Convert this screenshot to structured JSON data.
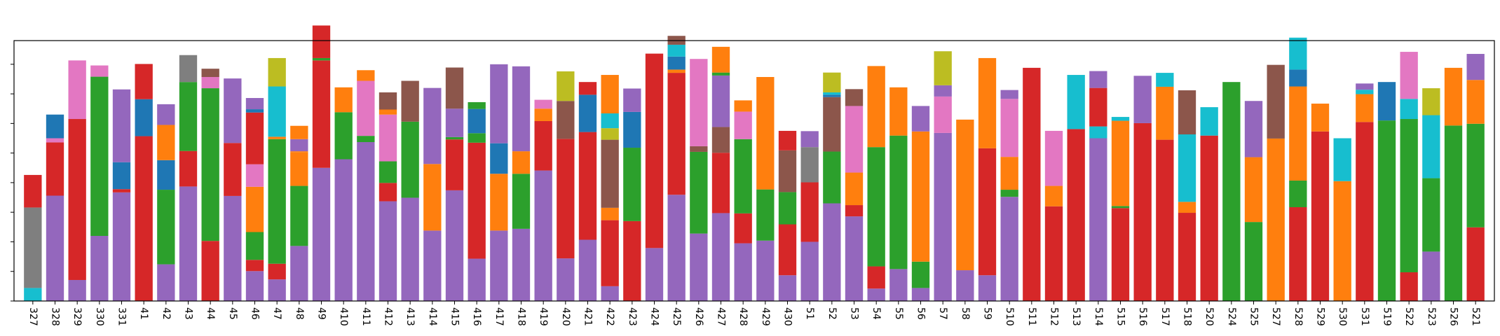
{
  "chart_data": {
    "type": "bar",
    "stacked": true,
    "title": "",
    "xlabel": "",
    "ylabel": "",
    "ylim": [
      0,
      88
    ],
    "ytick_values": [
      0,
      10,
      20,
      30,
      40,
      50,
      60,
      70,
      80
    ],
    "ytick_labels_visible": false,
    "grid": false,
    "legend": "none",
    "categories": [
      "327",
      "328",
      "329",
      "330",
      "331",
      "41",
      "42",
      "43",
      "44",
      "45",
      "46",
      "47",
      "48",
      "49",
      "410",
      "411",
      "412",
      "413",
      "414",
      "415",
      "416",
      "417",
      "418",
      "419",
      "420",
      "421",
      "422",
      "423",
      "424",
      "425",
      "426",
      "427",
      "428",
      "429",
      "430",
      "51",
      "52",
      "53",
      "54",
      "55",
      "56",
      "57",
      "58",
      "59",
      "510",
      "511",
      "512",
      "513",
      "514",
      "515",
      "516",
      "517",
      "518",
      "520",
      "524",
      "525",
      "527",
      "528",
      "529",
      "530",
      "531",
      "519",
      "522",
      "523",
      "526",
      "521"
    ],
    "colors": {
      "purple": "#9467bd",
      "red": "#d62728",
      "green": "#2ca02c",
      "orange": "#ff7f0e",
      "pink": "#e377c2",
      "blue": "#1f77b4",
      "gray": "#7f7f7f",
      "brown": "#8c564b",
      "olive": "#bcbd22",
      "cyan": "#17becf"
    },
    "stacks": [
      [
        [
          "cyan",
          4.4
        ],
        [
          "gray",
          27.2
        ],
        [
          "red",
          11.0
        ]
      ],
      [
        [
          "purple",
          35.6
        ],
        [
          "red",
          18.0
        ],
        [
          "pink",
          1.4
        ],
        [
          "blue",
          8.0
        ]
      ],
      [
        [
          "purple",
          7.1
        ],
        [
          "red",
          54.4
        ],
        [
          "pink",
          19.8
        ]
      ],
      [
        [
          "purple",
          22.0
        ],
        [
          "green",
          53.8
        ],
        [
          "pink",
          3.8
        ]
      ],
      [
        [
          "purple",
          36.7
        ],
        [
          "red",
          1.1
        ],
        [
          "blue",
          9.1
        ],
        [
          "purple",
          24.6
        ]
      ],
      [
        [
          "red",
          55.7
        ],
        [
          "blue",
          12.5
        ],
        [
          "red",
          11.9
        ]
      ],
      [
        [
          "purple",
          12.4
        ],
        [
          "green",
          25.2
        ],
        [
          "blue",
          10.0
        ],
        [
          "orange",
          11.9
        ],
        [
          "purple",
          7.0
        ]
      ],
      [
        [
          "purple",
          38.7
        ],
        [
          "red",
          12.0
        ],
        [
          "green",
          23.3
        ],
        [
          "gray",
          9.1
        ]
      ],
      [
        [
          "red",
          20.3
        ],
        [
          "green",
          51.6
        ],
        [
          "pink",
          3.8
        ],
        [
          "brown",
          2.8
        ]
      ],
      [
        [
          "purple",
          35.5
        ],
        [
          "red",
          17.9
        ],
        [
          "purple",
          21.8
        ]
      ],
      [
        [
          "purple",
          10.1
        ],
        [
          "red",
          3.8
        ],
        [
          "green",
          9.4
        ],
        [
          "orange",
          15.3
        ],
        [
          "pink",
          7.6
        ],
        [
          "red",
          17.5
        ],
        [
          "blue",
          1.1
        ],
        [
          "purple",
          3.8
        ]
      ],
      [
        [
          "purple",
          7.3
        ],
        [
          "red",
          5.3
        ],
        [
          "green",
          42.1
        ],
        [
          "orange",
          0.8
        ],
        [
          "cyan",
          17.0
        ],
        [
          "olive",
          9.6
        ]
      ],
      [
        [
          "purple",
          18.6
        ],
        [
          "green",
          20.3
        ],
        [
          "orange",
          11.3
        ],
        [
          "orange",
          0.4
        ],
        [
          "purple",
          4.1
        ],
        [
          "orange",
          4.5
        ]
      ],
      [
        [
          "purple",
          45.0
        ],
        [
          "red",
          36.3
        ],
        [
          "green",
          0.8
        ],
        [
          "red",
          11.0
        ]
      ],
      [
        [
          "purple",
          47.9
        ],
        [
          "green",
          15.9
        ],
        [
          "orange",
          8.4
        ]
      ],
      [
        [
          "purple",
          53.7
        ],
        [
          "green",
          2.1
        ],
        [
          "pink",
          18.6
        ],
        [
          "orange",
          3.6
        ]
      ],
      [
        [
          "purple",
          33.7
        ],
        [
          "red",
          6.2
        ],
        [
          "green",
          7.3
        ],
        [
          "pink",
          15.8
        ],
        [
          "orange",
          1.1
        ],
        [
          "orange",
          0.6
        ],
        [
          "brown",
          5.8
        ]
      ],
      [
        [
          "purple",
          34.9
        ],
        [
          "green",
          25.7
        ],
        [
          "brown",
          13.8
        ]
      ],
      [
        [
          "purple",
          23.8
        ],
        [
          "orange",
          22.5
        ],
        [
          "purple",
          25.7
        ]
      ],
      [
        [
          "purple",
          37.4
        ],
        [
          "red",
          17.2
        ],
        [
          "green",
          0.8
        ],
        [
          "purple",
          9.6
        ],
        [
          "brown",
          13.9
        ]
      ],
      [
        [
          "purple",
          14.3
        ],
        [
          "red",
          39.2
        ],
        [
          "green",
          3.2
        ],
        [
          "blue",
          8.2
        ],
        [
          "green",
          2.3
        ]
      ],
      [
        [
          "purple",
          23.8
        ],
        [
          "orange",
          19.2
        ],
        [
          "blue",
          10.3
        ],
        [
          "purple",
          26.7
        ]
      ],
      [
        [
          "purple",
          24.4
        ],
        [
          "green",
          18.6
        ],
        [
          "orange",
          7.6
        ],
        [
          "purple",
          28.7
        ]
      ],
      [
        [
          "purple",
          44.1
        ],
        [
          "red",
          16.7
        ],
        [
          "orange",
          4.2
        ],
        [
          "pink",
          3.0
        ]
      ],
      [
        [
          "purple",
          14.4
        ],
        [
          "red",
          40.4
        ],
        [
          "brown",
          12.8
        ],
        [
          "olive",
          10.0
        ]
      ],
      [
        [
          "purple",
          20.7
        ],
        [
          "red",
          36.4
        ],
        [
          "blue",
          12.6
        ],
        [
          "red",
          4.3
        ]
      ],
      [
        [
          "purple",
          5.0
        ],
        [
          "red",
          22.3
        ],
        [
          "orange",
          4.2
        ],
        [
          "brown",
          23.0
        ],
        [
          "olive",
          3.9
        ],
        [
          "cyan",
          5.0
        ],
        [
          "orange",
          13.0
        ]
      ],
      [
        [
          "red",
          27.0
        ],
        [
          "green",
          24.8
        ],
        [
          "blue",
          12.1
        ],
        [
          "purple",
          7.9
        ]
      ],
      [
        [
          "purple",
          17.9
        ],
        [
          "red",
          65.7
        ]
      ],
      [
        [
          "purple",
          35.9
        ],
        [
          "red",
          41.2
        ],
        [
          "orange",
          1.1
        ],
        [
          "blue",
          4.4
        ],
        [
          "cyan",
          4.0
        ],
        [
          "brown",
          3.0
        ]
      ],
      [
        [
          "purple",
          22.8
        ],
        [
          "green",
          27.6
        ],
        [
          "brown",
          1.9
        ],
        [
          "pink",
          29.5
        ]
      ],
      [
        [
          "purple",
          29.7
        ],
        [
          "red",
          20.4
        ],
        [
          "brown",
          8.7
        ],
        [
          "purple",
          17.4
        ],
        [
          "green",
          1.0
        ],
        [
          "orange",
          8.7
        ]
      ],
      [
        [
          "purple",
          19.5
        ],
        [
          "red",
          10.1
        ],
        [
          "green",
          25.1
        ],
        [
          "pink",
          9.3
        ],
        [
          "orange",
          3.8
        ]
      ],
      [
        [
          "purple",
          20.4
        ],
        [
          "green",
          17.3
        ],
        [
          "orange",
          38.0
        ]
      ],
      [
        [
          "purple",
          8.7
        ],
        [
          "red",
          17.2
        ],
        [
          "green",
          10.9
        ],
        [
          "brown",
          14.1
        ],
        [
          "red",
          6.6
        ]
      ],
      [
        [
          "purple",
          20.0
        ],
        [
          "red",
          20.1
        ],
        [
          "gray",
          11.9
        ],
        [
          "purple",
          5.4
        ]
      ],
      [
        [
          "purple",
          33.0
        ],
        [
          "green",
          17.5
        ],
        [
          "brown",
          18.4
        ],
        [
          "blue",
          0.8
        ],
        [
          "cyan",
          0.8
        ],
        [
          "olive",
          6.7
        ]
      ],
      [
        [
          "purple",
          28.6
        ],
        [
          "red",
          3.8
        ],
        [
          "orange",
          11.0
        ],
        [
          "pink",
          22.5
        ],
        [
          "brown",
          5.7
        ]
      ],
      [
        [
          "purple",
          4.2
        ],
        [
          "red",
          7.5
        ],
        [
          "green",
          40.3
        ],
        [
          "orange",
          27.4
        ]
      ],
      [
        [
          "purple",
          10.8
        ],
        [
          "green",
          45.1
        ],
        [
          "orange",
          16.3
        ]
      ],
      [
        [
          "purple",
          4.4
        ],
        [
          "green",
          8.9
        ],
        [
          "orange",
          44.0
        ],
        [
          "purple",
          8.6
        ]
      ],
      [
        [
          "purple",
          56.8
        ],
        [
          "pink",
          12.3
        ],
        [
          "purple",
          3.8
        ],
        [
          "olive",
          11.5
        ]
      ],
      [
        [
          "purple",
          10.4
        ],
        [
          "orange",
          50.9
        ]
      ],
      [
        [
          "purple",
          8.7
        ],
        [
          "red",
          42.9
        ],
        [
          "orange",
          30.5
        ]
      ],
      [
        [
          "purple",
          35.2
        ],
        [
          "green",
          2.4
        ],
        [
          "orange",
          11.1
        ],
        [
          "pink",
          19.6
        ],
        [
          "purple",
          3.0
        ]
      ],
      [
        [
          "red",
          78.8
        ]
      ],
      [
        [
          "red",
          32.0
        ],
        [
          "orange",
          6.9
        ],
        [
          "pink",
          18.6
        ]
      ],
      [
        [
          "red",
          58.1
        ],
        [
          "cyan",
          18.3
        ]
      ],
      [
        [
          "purple",
          55.0
        ],
        [
          "cyan",
          4.0
        ],
        [
          "red",
          13.0
        ],
        [
          "purple",
          5.7
        ]
      ],
      [
        [
          "red",
          31.4
        ],
        [
          "green",
          0.7
        ],
        [
          "orange",
          28.8
        ],
        [
          "cyan",
          1.3
        ]
      ],
      [
        [
          "red",
          60.1
        ],
        [
          "purple",
          16.0
        ]
      ],
      [
        [
          "red",
          54.5
        ],
        [
          "orange",
          17.9
        ],
        [
          "cyan",
          4.7
        ]
      ],
      [
        [
          "red",
          29.8
        ],
        [
          "orange",
          3.7
        ],
        [
          "cyan",
          22.8
        ],
        [
          "brown",
          14.9
        ]
      ],
      [
        [
          "red",
          55.9
        ],
        [
          "cyan",
          9.6
        ]
      ],
      [
        [
          "green",
          74.0
        ]
      ],
      [
        [
          "green",
          26.7
        ],
        [
          "orange",
          21.9
        ],
        [
          "purple",
          19.0
        ]
      ],
      [
        [
          "orange",
          54.9
        ],
        [
          "brown",
          24.9
        ]
      ],
      [
        [
          "red",
          31.7
        ],
        [
          "green",
          9.0
        ],
        [
          "orange",
          31.8
        ],
        [
          "blue",
          5.7
        ],
        [
          "cyan",
          10.8
        ]
      ],
      [
        [
          "red",
          57.3
        ],
        [
          "orange",
          9.4
        ]
      ],
      [
        [
          "orange",
          40.5
        ],
        [
          "cyan",
          14.5
        ]
      ],
      [
        [
          "red",
          60.5
        ],
        [
          "orange",
          9.4
        ],
        [
          "cyan",
          1.5
        ],
        [
          "purple",
          2.1
        ]
      ],
      [
        [
          "green",
          61.0
        ],
        [
          "blue",
          13.0
        ]
      ],
      [
        [
          "red",
          9.7
        ],
        [
          "green",
          51.8
        ],
        [
          "cyan",
          6.8
        ],
        [
          "pink",
          15.9
        ]
      ],
      [
        [
          "purple",
          16.7
        ],
        [
          "green",
          24.8
        ],
        [
          "cyan",
          21.3
        ],
        [
          "olive",
          9.1
        ]
      ],
      [
        [
          "green",
          59.3
        ],
        [
          "orange",
          19.5
        ]
      ],
      [
        [
          "red",
          24.9
        ],
        [
          "green",
          35.0
        ],
        [
          "orange",
          14.8
        ],
        [
          "purple",
          8.8
        ]
      ]
    ]
  }
}
